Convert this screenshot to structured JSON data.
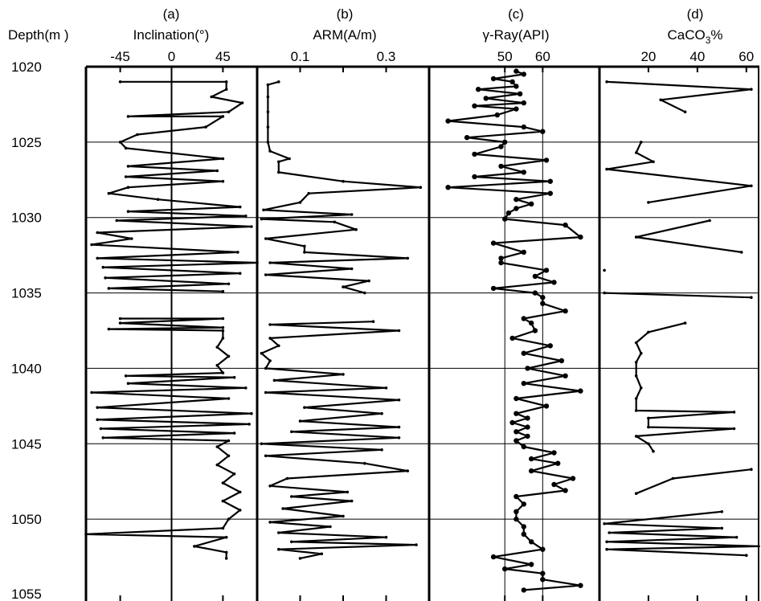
{
  "chart_data": {
    "type": "line",
    "layout": "multi-panel well log",
    "depth_axis": {
      "label": "Depth(m )",
      "range": [
        1020,
        1055
      ],
      "tick_labels": [
        "1020",
        "1025",
        "1030",
        "1035",
        "1040",
        "1045",
        "1050",
        "1055"
      ],
      "ticks": [
        1020,
        1025,
        1030,
        1035,
        1040,
        1045,
        1050,
        1055
      ],
      "inverted": true
    },
    "horizontal_gridlines_at_depth": [
      1025,
      1030,
      1035,
      1040,
      1045,
      1050
    ],
    "panels": [
      {
        "id": "(a)",
        "title": "Inclination(°)",
        "xlim": [
          -75,
          75
        ],
        "tick_labels": [
          "-45",
          "0",
          "45"
        ],
        "ticks": [
          -45,
          0,
          45
        ],
        "reference_lines": [
          0
        ],
        "points": [
          [
            1021.0,
            -45
          ],
          [
            1021.0,
            48
          ],
          [
            1021.5,
            48
          ],
          [
            1022.0,
            35
          ],
          [
            1022.4,
            62
          ],
          [
            1023.0,
            50
          ],
          [
            1023.3,
            -38
          ],
          [
            1023.3,
            45
          ],
          [
            1024.0,
            30
          ],
          [
            1024.5,
            -30
          ],
          [
            1025.0,
            -45
          ],
          [
            1025.4,
            -40
          ],
          [
            1026.1,
            45
          ],
          [
            1026.6,
            -38
          ],
          [
            1026.9,
            40
          ],
          [
            1027.3,
            -40
          ],
          [
            1027.6,
            45
          ],
          [
            1028.0,
            -38
          ],
          [
            1028.4,
            -55
          ],
          [
            1028.8,
            -12
          ],
          [
            1029.3,
            60
          ],
          [
            1029.6,
            -38
          ],
          [
            1029.9,
            65
          ],
          [
            1030.2,
            -48
          ],
          [
            1030.6,
            70
          ],
          [
            1031.0,
            -65
          ],
          [
            1031.4,
            -35
          ],
          [
            1031.8,
            -70
          ],
          [
            1032.3,
            58
          ],
          [
            1032.7,
            -65
          ],
          [
            1033.0,
            75
          ],
          [
            1033.3,
            -60
          ],
          [
            1033.7,
            60
          ],
          [
            1034.0,
            -58
          ],
          [
            1034.4,
            50
          ],
          [
            1034.7,
            -55
          ],
          [
            1034.9,
            45
          ],
          [
            1036.7,
            -45
          ],
          [
            1036.7,
            45
          ],
          [
            1037.0,
            -45
          ],
          [
            1037.3,
            45
          ],
          [
            1037.4,
            -55
          ],
          [
            1037.5,
            45
          ],
          [
            1038.0,
            45
          ],
          [
            1038.6,
            40
          ],
          [
            1039.2,
            50
          ],
          [
            1039.8,
            40
          ],
          [
            1040.3,
            45
          ],
          [
            1040.5,
            -40
          ],
          [
            1040.6,
            55
          ],
          [
            1041.0,
            -38
          ],
          [
            1041.3,
            65
          ],
          [
            1041.6,
            -70
          ],
          [
            1042.0,
            50
          ],
          [
            1042.6,
            -65
          ],
          [
            1043.0,
            70
          ],
          [
            1043.4,
            -65
          ],
          [
            1043.7,
            68
          ],
          [
            1044.0,
            -62
          ],
          [
            1044.3,
            55
          ],
          [
            1044.6,
            -60
          ],
          [
            1044.8,
            50
          ],
          [
            1045.2,
            40
          ],
          [
            1045.8,
            50
          ],
          [
            1046.4,
            40
          ],
          [
            1047.0,
            55
          ],
          [
            1047.6,
            45
          ],
          [
            1048.2,
            60
          ],
          [
            1048.8,
            45
          ],
          [
            1049.4,
            60
          ],
          [
            1050.0,
            50
          ],
          [
            1050.6,
            45
          ],
          [
            1051.0,
            -75
          ],
          [
            1051.2,
            48
          ],
          [
            1051.8,
            20
          ],
          [
            1052.2,
            48
          ],
          [
            1052.6,
            48
          ]
        ]
      },
      {
        "id": "(b)",
        "title": "ARM(A/m)",
        "xlim": [
          0.0,
          0.4
        ],
        "tick_labels": [
          "0.1",
          "0.3"
        ],
        "ticks": [
          0.1,
          0.2,
          0.3
        ],
        "reference_lines": [],
        "points": [
          [
            1021.0,
            0.05
          ],
          [
            1021.2,
            0.025
          ],
          [
            1022.0,
            0.025
          ],
          [
            1023.0,
            0.025
          ],
          [
            1024.0,
            0.025
          ],
          [
            1025.0,
            0.025
          ],
          [
            1025.6,
            0.03
          ],
          [
            1026.1,
            0.075
          ],
          [
            1026.3,
            0.05
          ],
          [
            1027.0,
            0.05
          ],
          [
            1027.6,
            0.2
          ],
          [
            1028.0,
            0.38
          ],
          [
            1028.4,
            0.12
          ],
          [
            1029.0,
            0.1
          ],
          [
            1029.5,
            0.015
          ],
          [
            1029.8,
            0.22
          ],
          [
            1030.1,
            0.01
          ],
          [
            1030.3,
            0.18
          ],
          [
            1030.8,
            0.23
          ],
          [
            1031.4,
            0.02
          ],
          [
            1031.9,
            0.11
          ],
          [
            1032.3,
            0.11
          ],
          [
            1032.7,
            0.35
          ],
          [
            1033.0,
            0.03
          ],
          [
            1033.4,
            0.22
          ],
          [
            1033.8,
            0.02
          ],
          [
            1034.2,
            0.26
          ],
          [
            1034.6,
            0.2
          ],
          [
            1035.0,
            0.25
          ],
          [
            1036.9,
            0.27
          ],
          [
            1037.1,
            0.03
          ],
          [
            1037.5,
            0.33
          ],
          [
            1038.0,
            0.03
          ],
          [
            1038.5,
            0.05
          ],
          [
            1039.0,
            0.01
          ],
          [
            1039.5,
            0.03
          ],
          [
            1040.0,
            0.02
          ],
          [
            1040.4,
            0.2
          ],
          [
            1040.8,
            0.04
          ],
          [
            1041.3,
            0.3
          ],
          [
            1041.6,
            0.02
          ],
          [
            1042.1,
            0.33
          ],
          [
            1042.6,
            0.11
          ],
          [
            1043.0,
            0.29
          ],
          [
            1043.5,
            0.1
          ],
          [
            1043.9,
            0.33
          ],
          [
            1044.2,
            0.08
          ],
          [
            1044.6,
            0.33
          ],
          [
            1045.0,
            0.01
          ],
          [
            1045.4,
            0.29
          ],
          [
            1045.8,
            0.02
          ],
          [
            1046.3,
            0.25
          ],
          [
            1046.8,
            0.35
          ],
          [
            1047.3,
            0.07
          ],
          [
            1047.8,
            0.03
          ],
          [
            1048.2,
            0.21
          ],
          [
            1048.5,
            0.08
          ],
          [
            1048.8,
            0.22
          ],
          [
            1049.3,
            0.06
          ],
          [
            1049.8,
            0.2
          ],
          [
            1050.2,
            0.03
          ],
          [
            1050.5,
            0.17
          ],
          [
            1050.9,
            0.05
          ],
          [
            1051.2,
            0.3
          ],
          [
            1051.5,
            0.08
          ],
          [
            1051.7,
            0.37
          ],
          [
            1052.0,
            0.05
          ],
          [
            1052.3,
            0.15
          ],
          [
            1052.6,
            0.1
          ]
        ]
      },
      {
        "id": "(c)",
        "title": "γ-Ray(API)",
        "xlim": [
          30,
          75
        ],
        "tick_labels": [
          "50",
          "60"
        ],
        "ticks": [
          50,
          60
        ],
        "reference_lines": [
          50,
          60
        ],
        "points": [
          [
            1020.3,
            53
          ],
          [
            1020.5,
            55
          ],
          [
            1020.8,
            47
          ],
          [
            1021.0,
            52
          ],
          [
            1021.3,
            53
          ],
          [
            1021.5,
            43
          ],
          [
            1021.8,
            54
          ],
          [
            1022.1,
            45
          ],
          [
            1022.4,
            55
          ],
          [
            1022.6,
            42
          ],
          [
            1022.8,
            53
          ],
          [
            1023.2,
            48
          ],
          [
            1023.6,
            35
          ],
          [
            1024.0,
            55
          ],
          [
            1024.3,
            60
          ],
          [
            1024.7,
            40
          ],
          [
            1025.0,
            50
          ],
          [
            1025.3,
            49
          ],
          [
            1025.8,
            42
          ],
          [
            1026.2,
            61
          ],
          [
            1026.6,
            49
          ],
          [
            1027.0,
            55
          ],
          [
            1027.3,
            42
          ],
          [
            1027.6,
            62
          ],
          [
            1028.0,
            35
          ],
          [
            1028.4,
            62
          ],
          [
            1028.8,
            53
          ],
          [
            1029.1,
            57
          ],
          [
            1029.4,
            53
          ],
          [
            1029.7,
            51
          ],
          [
            1030.1,
            50
          ],
          [
            1030.5,
            66
          ],
          [
            1031.3,
            70
          ],
          [
            1031.7,
            47
          ],
          [
            1032.3,
            55
          ],
          [
            1032.7,
            49
          ],
          [
            1033.0,
            49
          ],
          [
            1033.5,
            61
          ],
          [
            1033.9,
            58
          ],
          [
            1034.3,
            63
          ],
          [
            1034.7,
            47
          ],
          [
            1035.0,
            58
          ],
          [
            1035.3,
            60
          ],
          [
            1035.7,
            60
          ],
          [
            1036.2,
            66
          ],
          [
            1036.7,
            55
          ],
          [
            1037.0,
            57
          ],
          [
            1037.5,
            58
          ],
          [
            1038.0,
            52
          ],
          [
            1038.5,
            62
          ],
          [
            1039.0,
            55
          ],
          [
            1039.5,
            65
          ],
          [
            1040.0,
            56
          ],
          [
            1040.5,
            66
          ],
          [
            1041.0,
            55
          ],
          [
            1041.5,
            70
          ],
          [
            1042.0,
            53
          ],
          [
            1042.5,
            61
          ],
          [
            1043.0,
            53
          ],
          [
            1043.3,
            56
          ],
          [
            1043.6,
            52
          ],
          [
            1043.9,
            56
          ],
          [
            1044.2,
            53
          ],
          [
            1044.5,
            56
          ],
          [
            1044.8,
            53
          ],
          [
            1045.2,
            55
          ],
          [
            1045.6,
            63
          ],
          [
            1046.0,
            57
          ],
          [
            1046.3,
            64
          ],
          [
            1046.8,
            57
          ],
          [
            1047.3,
            68
          ],
          [
            1047.7,
            63
          ],
          [
            1048.1,
            66
          ],
          [
            1048.5,
            53
          ],
          [
            1049.0,
            55
          ],
          [
            1049.5,
            53
          ],
          [
            1050.0,
            53
          ],
          [
            1050.5,
            55
          ],
          [
            1051.0,
            55
          ],
          [
            1051.5,
            57
          ],
          [
            1052.0,
            60
          ],
          [
            1052.5,
            47
          ],
          [
            1053.0,
            57
          ],
          [
            1053.3,
            50
          ],
          [
            1053.6,
            60
          ],
          [
            1054.0,
            60
          ],
          [
            1054.4,
            70
          ],
          [
            1054.7,
            55
          ]
        ]
      },
      {
        "id": "(d)",
        "title": "CaCO3%",
        "xlim": [
          0,
          65
        ],
        "tick_labels": [
          "20",
          "40",
          "60"
        ],
        "ticks": [
          20,
          40,
          60
        ],
        "reference_lines": [],
        "points": [
          [
            1021.0,
            3
          ],
          [
            1021.5,
            62
          ],
          [
            1022.2,
            25
          ],
          [
            1023.0,
            35
          ],
          [
            1025.0,
            17
          ],
          [
            1025.7,
            15
          ],
          [
            1026.3,
            22
          ],
          [
            1026.8,
            3
          ],
          [
            1027.9,
            62
          ],
          [
            1029.0,
            20
          ],
          [
            1030.2,
            45
          ],
          [
            1031.3,
            15
          ],
          [
            1032.3,
            58
          ],
          [
            1033.5,
            2
          ],
          [
            1035.0,
            2
          ],
          [
            1035.3,
            62
          ],
          [
            1037.0,
            35
          ],
          [
            1037.6,
            20
          ],
          [
            1038.3,
            15
          ],
          [
            1039.0,
            17
          ],
          [
            1039.6,
            15
          ],
          [
            1040.5,
            15
          ],
          [
            1041.3,
            17
          ],
          [
            1042.0,
            15
          ],
          [
            1042.8,
            15
          ],
          [
            1042.9,
            55
          ],
          [
            1043.3,
            20
          ],
          [
            1043.9,
            20
          ],
          [
            1044.0,
            55
          ],
          [
            1044.5,
            15
          ],
          [
            1045.0,
            20
          ],
          [
            1045.5,
            22
          ],
          [
            1046.7,
            62
          ],
          [
            1047.3,
            30
          ],
          [
            1048.3,
            15
          ],
          [
            1049.5,
            50
          ],
          [
            1050.3,
            2
          ],
          [
            1050.6,
            50
          ],
          [
            1050.9,
            4
          ],
          [
            1051.2,
            56
          ],
          [
            1051.5,
            3
          ],
          [
            1051.8,
            65
          ],
          [
            1052.0,
            3
          ],
          [
            1052.4,
            60
          ]
        ]
      }
    ]
  }
}
